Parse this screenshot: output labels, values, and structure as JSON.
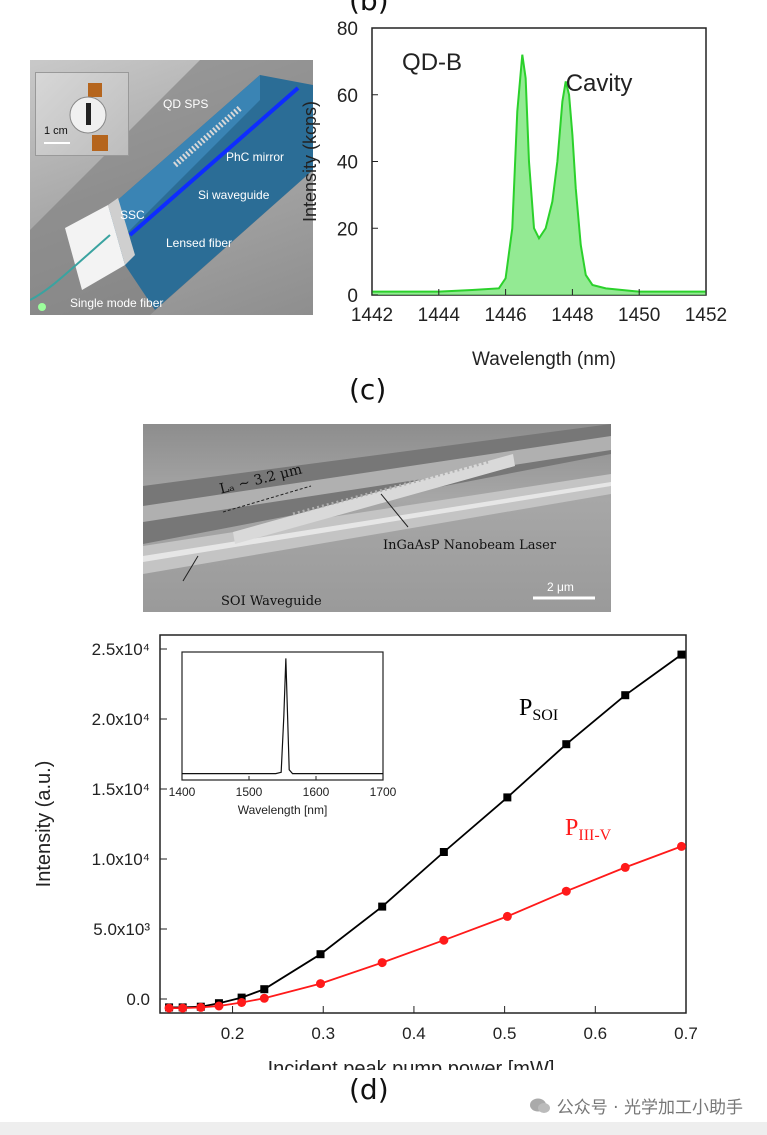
{
  "panels": {
    "b_label_partial": "(b)",
    "c_label": "(c)",
    "d_label": "(d)"
  },
  "photo_b": {
    "labels": {
      "qd_sps": "QD SPS",
      "phc_mirror": "PhC mirror",
      "si_waveguide": "Si waveguide",
      "ssc": "SSC",
      "lensed_fiber": "Lensed fiber",
      "single_mode_fiber": "Single mode fiber",
      "scale": "1 cm"
    }
  },
  "sem_c": {
    "lc": "Lₐ ~ 3.2 μm",
    "laser": "InGaAsP Nanobeam Laser",
    "waveguide": "SOI Waveguide",
    "scale": "2 μm"
  },
  "watermark": {
    "text": "公众号 · 光学加工小助手"
  },
  "chart_data": [
    {
      "id": "spectrum-b",
      "type": "area",
      "xlabel": "Wavelength (nm)",
      "ylabel": "Intensity (kcps)",
      "xlim": [
        1442,
        1452
      ],
      "ylim": [
        0,
        80
      ],
      "xticks": [
        1442,
        1444,
        1446,
        1448,
        1450,
        1452
      ],
      "yticks": [
        0,
        20,
        40,
        60,
        80
      ],
      "annotations": [
        "QD-B",
        "Cavity"
      ],
      "x": [
        1442,
        1443,
        1444,
        1445,
        1445.8,
        1446.0,
        1446.2,
        1446.35,
        1446.5,
        1446.6,
        1446.7,
        1446.85,
        1447.0,
        1447.2,
        1447.4,
        1447.55,
        1447.7,
        1447.8,
        1447.9,
        1448.0,
        1448.1,
        1448.25,
        1448.4,
        1448.6,
        1449,
        1450,
        1451,
        1452
      ],
      "values": [
        1,
        1,
        1,
        1.5,
        2,
        5,
        20,
        55,
        72,
        65,
        40,
        20,
        17,
        20,
        28,
        40,
        58,
        64,
        60,
        48,
        32,
        15,
        6,
        3,
        2,
        1,
        1,
        1
      ]
    },
    {
      "id": "power-d",
      "type": "line",
      "xlabel": "Incident peak pump power [mW]",
      "ylabel": "Intensity (a.u.)",
      "xlim": [
        0.12,
        0.7
      ],
      "ylim": [
        -1000,
        26000
      ],
      "xticks": [
        0.2,
        0.3,
        0.4,
        0.5,
        0.6,
        0.7
      ],
      "ytick_labels": [
        "0.0",
        "5.0x10³",
        "1.0x10⁴",
        "1.5x10⁴",
        "2.0x10⁴",
        "2.5x10⁴"
      ],
      "ytick_values": [
        0,
        5000,
        10000,
        15000,
        20000,
        25000
      ],
      "series": [
        {
          "name": "P_SOI",
          "label_main": "P",
          "label_sub": "SOI",
          "color": "#000000",
          "marker": "square",
          "x": [
            0.13,
            0.145,
            0.165,
            0.185,
            0.21,
            0.235,
            0.297,
            0.365,
            0.433,
            0.503,
            0.568,
            0.633,
            0.695
          ],
          "values": [
            -600,
            -600,
            -550,
            -300,
            100,
            700,
            3200,
            6600,
            10500,
            14400,
            18200,
            21700,
            24600
          ]
        },
        {
          "name": "P_III-V",
          "label_main": "P",
          "label_sub": "III-V",
          "color": "#ff1a1a",
          "marker": "circle",
          "x": [
            0.13,
            0.145,
            0.165,
            0.185,
            0.21,
            0.235,
            0.297,
            0.365,
            0.433,
            0.503,
            0.568,
            0.633,
            0.695
          ],
          "values": [
            -650,
            -650,
            -600,
            -500,
            -250,
            50,
            1100,
            2600,
            4200,
            5900,
            7700,
            9400,
            10900
          ]
        }
      ]
    },
    {
      "id": "inset-d",
      "type": "line",
      "xlabel": "Wavelength [nm]",
      "xlim": [
        1400,
        1700
      ],
      "xticks": [
        1400,
        1500,
        1600,
        1700
      ],
      "ylim": [
        0,
        1
      ],
      "x": [
        1400,
        1540,
        1548,
        1552,
        1555,
        1557,
        1560,
        1565,
        1700
      ],
      "values": [
        0.05,
        0.05,
        0.06,
        0.5,
        0.95,
        0.6,
        0.08,
        0.05,
        0.05
      ]
    }
  ]
}
